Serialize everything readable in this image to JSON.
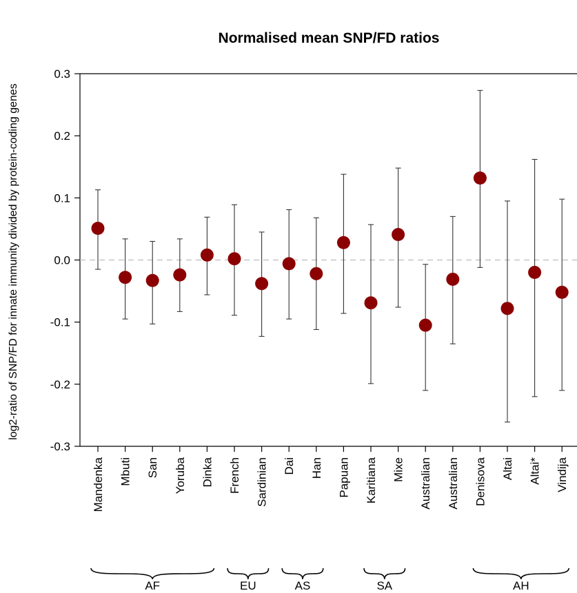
{
  "chart_data": {
    "type": "scatter",
    "title": "Normalised mean SNP/FD ratios",
    "xlabel": "",
    "ylabel": "log2-ratio of SNP/FD for innate immunity divided by protein-coding genes",
    "ylim": [
      -0.3,
      0.3
    ],
    "yticks": [
      "-0.3",
      "-0.2",
      "-0.1",
      "0.0",
      "0.1",
      "0.2",
      "0.3"
    ],
    "reference_line": 0.0,
    "grid": false,
    "categories": [
      "Mandenka",
      "Mbuti",
      "San",
      "Yoruba",
      "Dinka",
      "French",
      "Sardinian",
      "Dai",
      "Han",
      "Papuan",
      "Karitiana",
      "Mixe",
      "Australian",
      "Australian",
      "Denisova",
      "Altai",
      "Altai*",
      "Vindija"
    ],
    "series": [
      {
        "values": [
          0.051,
          -0.028,
          -0.033,
          -0.024,
          0.008,
          0.002,
          -0.038,
          -0.006,
          -0.022,
          0.028,
          -0.069,
          0.041,
          -0.105,
          -0.031,
          0.132,
          -0.078,
          -0.02,
          -0.052
        ],
        "lower": [
          -0.015,
          -0.095,
          -0.103,
          -0.083,
          -0.056,
          -0.089,
          -0.123,
          -0.095,
          -0.112,
          -0.086,
          -0.199,
          -0.076,
          -0.21,
          -0.135,
          -0.012,
          -0.261,
          -0.22,
          -0.21
        ],
        "upper": [
          0.113,
          0.034,
          0.03,
          0.034,
          0.069,
          0.089,
          0.045,
          0.081,
          0.068,
          0.138,
          0.057,
          0.148,
          -0.007,
          0.07,
          0.273,
          0.095,
          0.162,
          0.098
        ],
        "color": "#8b0000"
      }
    ],
    "groups": [
      {
        "label": "AF",
        "start": 0,
        "end": 4
      },
      {
        "label": "EU",
        "start": 5,
        "end": 6
      },
      {
        "label": "AS",
        "start": 7,
        "end": 8
      },
      {
        "label": "SA",
        "start": 10,
        "end": 11
      },
      {
        "label": "AH",
        "start": 14,
        "end": 17
      }
    ]
  }
}
